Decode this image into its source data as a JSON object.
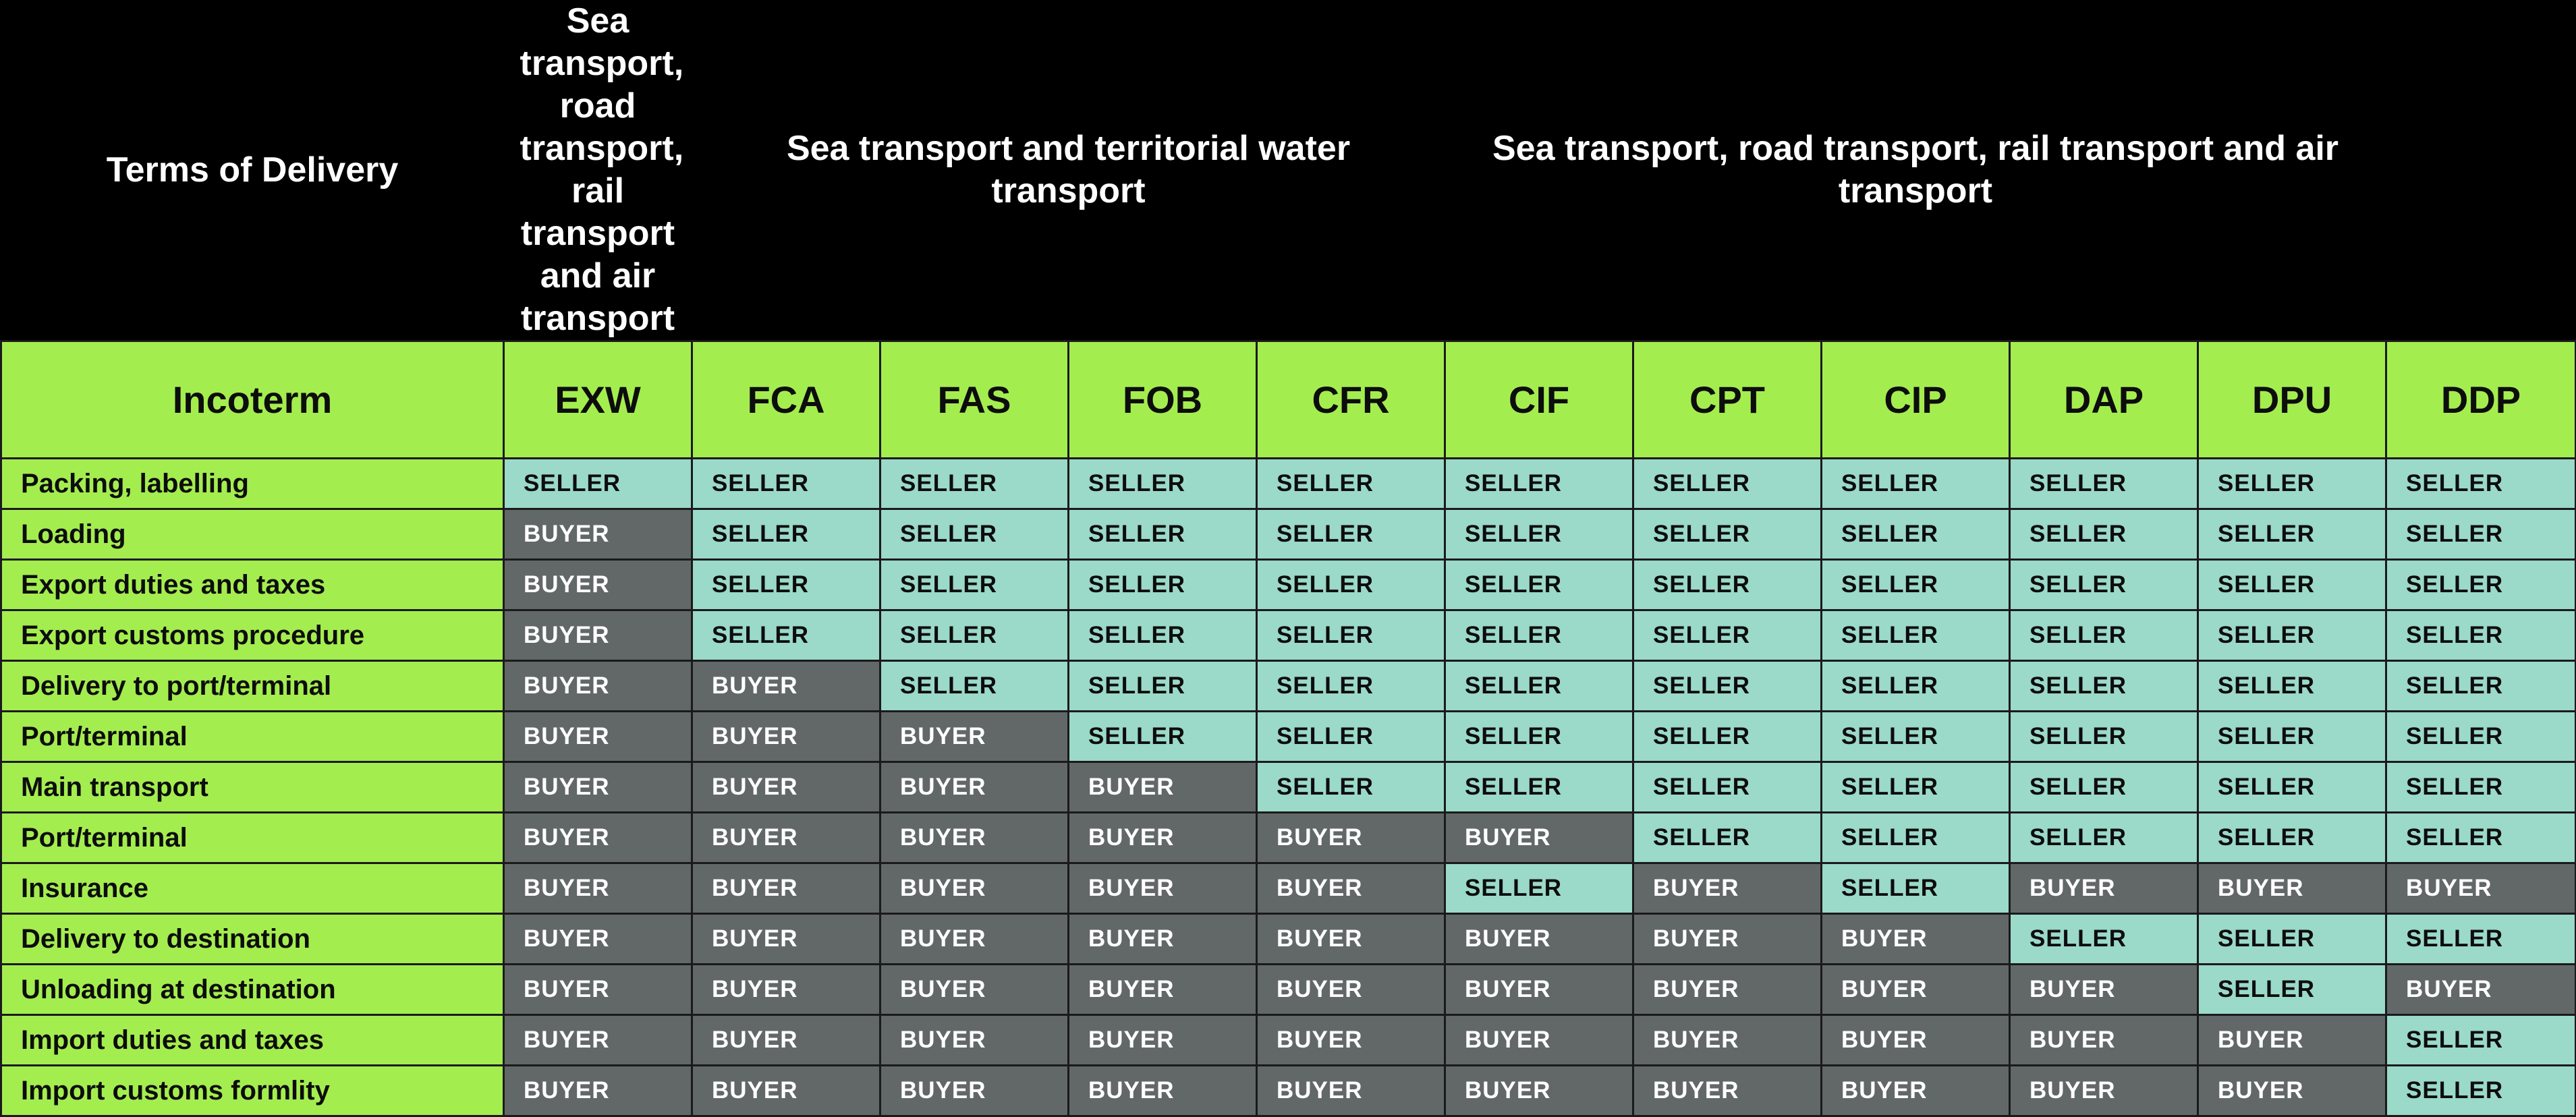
{
  "header": {
    "terms_label": "Terms of Delivery",
    "group_1": "Sea transport, road transport, rail transport and air transport",
    "group_2": "Sea transport and territorial water transport",
    "group_3": "Sea transport, road transport, rail transport and air transport"
  },
  "incoterm_label": "Incoterm",
  "incoterms": [
    "EXW",
    "FCA",
    "FAS",
    "FOB",
    "CFR",
    "CIF",
    "CPT",
    "CIP",
    "DAP",
    "DPU",
    "DDP"
  ],
  "colors": {
    "seller": "#9bd9c8",
    "buyer": "#626868",
    "label_green": "#a4ed4f",
    "header_black": "#000000"
  },
  "rows": [
    {
      "label": "Packing, labelling",
      "values": [
        "SELLER",
        "SELLER",
        "SELLER",
        "SELLER",
        "SELLER",
        "SELLER",
        "SELLER",
        "SELLER",
        "SELLER",
        "SELLER",
        "SELLER"
      ]
    },
    {
      "label": "Loading",
      "values": [
        "BUYER",
        "SELLER",
        "SELLER",
        "SELLER",
        "SELLER",
        "SELLER",
        "SELLER",
        "SELLER",
        "SELLER",
        "SELLER",
        "SELLER"
      ]
    },
    {
      "label": "Export duties and taxes",
      "values": [
        "BUYER",
        "SELLER",
        "SELLER",
        "SELLER",
        "SELLER",
        "SELLER",
        "SELLER",
        "SELLER",
        "SELLER",
        "SELLER",
        "SELLER"
      ]
    },
    {
      "label": "Export customs procedure",
      "values": [
        "BUYER",
        "SELLER",
        "SELLER",
        "SELLER",
        "SELLER",
        "SELLER",
        "SELLER",
        "SELLER",
        "SELLER",
        "SELLER",
        "SELLER"
      ]
    },
    {
      "label": "Delivery to port/terminal",
      "values": [
        "BUYER",
        "BUYER",
        "SELLER",
        "SELLER",
        "SELLER",
        "SELLER",
        "SELLER",
        "SELLER",
        "SELLER",
        "SELLER",
        "SELLER"
      ]
    },
    {
      "label": "Port/terminal",
      "values": [
        "BUYER",
        "BUYER",
        "BUYER",
        "SELLER",
        "SELLER",
        "SELLER",
        "SELLER",
        "SELLER",
        "SELLER",
        "SELLER",
        "SELLER"
      ]
    },
    {
      "label": "Main transport",
      "values": [
        "BUYER",
        "BUYER",
        "BUYER",
        "BUYER",
        "SELLER",
        "SELLER",
        "SELLER",
        "SELLER",
        "SELLER",
        "SELLER",
        "SELLER"
      ]
    },
    {
      "label": "Port/terminal",
      "values": [
        "BUYER",
        "BUYER",
        "BUYER",
        "BUYER",
        "BUYER",
        "BUYER",
        "SELLER",
        "SELLER",
        "SELLER",
        "SELLER",
        "SELLER"
      ]
    },
    {
      "label": "Insurance",
      "values": [
        "BUYER",
        "BUYER",
        "BUYER",
        "BUYER",
        "BUYER",
        "SELLER",
        "BUYER",
        "SELLER",
        "BUYER",
        "BUYER",
        "BUYER"
      ]
    },
    {
      "label": "Delivery to destination",
      "values": [
        "BUYER",
        "BUYER",
        "BUYER",
        "BUYER",
        "BUYER",
        "BUYER",
        "BUYER",
        "BUYER",
        "SELLER",
        "SELLER",
        "SELLER"
      ]
    },
    {
      "label": "Unloading at destination",
      "values": [
        "BUYER",
        "BUYER",
        "BUYER",
        "BUYER",
        "BUYER",
        "BUYER",
        "BUYER",
        "BUYER",
        "BUYER",
        "SELLER",
        "BUYER"
      ]
    },
    {
      "label": "Import duties and taxes",
      "values": [
        "BUYER",
        "BUYER",
        "BUYER",
        "BUYER",
        "BUYER",
        "BUYER",
        "BUYER",
        "BUYER",
        "BUYER",
        "BUYER",
        "SELLER"
      ]
    },
    {
      "label": "Import customs formlity",
      "values": [
        "BUYER",
        "BUYER",
        "BUYER",
        "BUYER",
        "BUYER",
        "BUYER",
        "BUYER",
        "BUYER",
        "BUYER",
        "BUYER",
        "SELLER"
      ]
    }
  ]
}
